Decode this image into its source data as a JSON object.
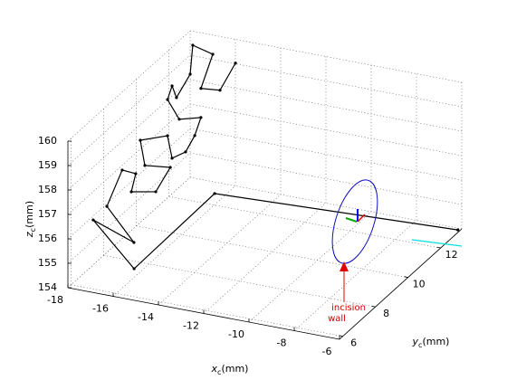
{
  "chart_data": {
    "type": "line3d",
    "x_label": {
      "var": "x",
      "sub": "c",
      "unit": "(mm)"
    },
    "y_label": {
      "var": "y",
      "sub": "c",
      "unit": "(mm)"
    },
    "z_label": {
      "var": "z",
      "sub": "c",
      "unit": "(mm)"
    },
    "xlim": [
      -18,
      -6
    ],
    "ylim": [
      5.8,
      13.3
    ],
    "zlim": [
      154,
      160
    ],
    "xticks": [
      -18,
      -16,
      -14,
      -12,
      -10,
      -8,
      -6
    ],
    "yticks": [
      6,
      8,
      10,
      12
    ],
    "zticks": [
      154,
      155,
      156,
      157,
      158,
      159,
      160
    ],
    "grid": true,
    "annotation": [
      "incision",
      "wall"
    ],
    "series": [
      {
        "color": "#000000",
        "x": [
          -16.4,
          -16.4,
          -16.4,
          -16.4,
          -16.4,
          -16.4,
          -16.4,
          -16.4,
          -16.4,
          -16.4,
          -16.4,
          -16.4,
          -16.4,
          -16.4,
          -16.4,
          -16.4,
          -16.4,
          -16.4,
          -16.4,
          -16.4,
          -16.4,
          -16.4,
          -16.4,
          -16.4,
          -16.4,
          -16.35,
          -16.45,
          -6.1
        ],
        "y": [
          13.86,
          12.91,
          11.74,
          12.47,
          11.24,
          11.08,
          10.24,
          9.97,
          9.69,
          10.41,
          11.74,
          11.36,
          10.8,
          9.97,
          9.69,
          8.02,
          8.3,
          9.86,
          8.97,
          7.47,
          7.74,
          6.91,
          5.97,
          7.63,
          5.13,
          7.57,
          12.65,
          13.2
        ],
        "z": [
          158.62,
          158.08,
          158.86,
          159.82,
          160.93,
          159.84,
          159.39,
          160.03,
          159.64,
          158.4,
          157.67,
          157.16,
          156.83,
          157.07,
          158.16,
          158.98,
          157.78,
          156.76,
          156.3,
          157.2,
          157.78,
          158.43,
          157.51,
          155.03,
          157.46,
          154,
          154,
          154
        ]
      }
    ]
  }
}
